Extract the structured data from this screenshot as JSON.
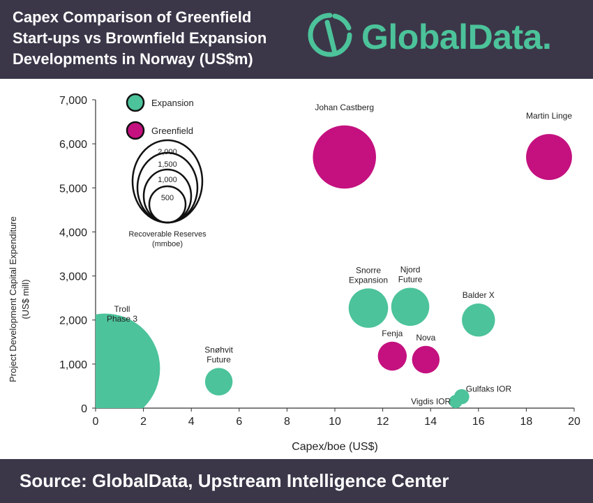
{
  "header": {
    "title_lines": [
      "Capex Comparison of Greenfield",
      "Start-ups vs Brownfield Expansion",
      "Developments in Norway (US$m)"
    ],
    "logo": {
      "wordmark": "GlobalData",
      "dot": ".",
      "color": "#4cc39a"
    }
  },
  "footer": {
    "source": "Source: GlobalData, Upstream Intelligence Center"
  },
  "chart_data": {
    "type": "scatter",
    "title": "Capex Comparison of Greenfield Start-ups vs Brownfield Expansion Developments in Norway (US$m)",
    "xlabel": "Capex/boe (US$)",
    "ylabel": [
      "Project Development Capital Expenditure",
      "(US$ mill)"
    ],
    "xlim": [
      0,
      20
    ],
    "ylim": [
      0,
      7000
    ],
    "x_ticks": [
      "0",
      "2",
      "4",
      "6",
      "8",
      "10",
      "12",
      "14",
      "16",
      "18",
      "20"
    ],
    "y_ticks": [
      "0",
      "1,000",
      "2,000",
      "3,000",
      "4,000",
      "5,000",
      "6,000",
      "7,000"
    ],
    "grid": false,
    "colors": {
      "Expansion": "#4cc39a",
      "Greenfield": "#c4117f"
    },
    "legend": {
      "placement": "top-left",
      "entries": [
        "Expansion",
        "Greenfield"
      ],
      "size_legend_values": [
        "2,000",
        "1,500",
        "1,000",
        "500"
      ],
      "size_title_lines": [
        "Recoverable Reserves",
        "(mmboe)"
      ]
    },
    "points": [
      {
        "label": "Troll Phase 3",
        "label_lines": [
          "Troll",
          "Phase 3"
        ],
        "category": "Expansion",
        "x": 0.4,
        "y": 900,
        "reserves": 1800
      },
      {
        "label": "Snøhvit Future",
        "label_lines": [
          "Snøhvit",
          "Future"
        ],
        "category": "Expansion",
        "x": 5.15,
        "y": 600,
        "reserves": 80
      },
      {
        "label": "Johan Castberg",
        "label_lines": [
          "Johan Castberg"
        ],
        "category": "Greenfield",
        "x": 10.4,
        "y": 5700,
        "reserves": 550
      },
      {
        "label": "Martin Linge",
        "label_lines": [
          "Martin Linge"
        ],
        "category": "Greenfield",
        "x": 18.95,
        "y": 5700,
        "reserves": 270
      },
      {
        "label": "Snorre Expansion",
        "label_lines": [
          "Snorre",
          "Expansion"
        ],
        "category": "Expansion",
        "x": 11.4,
        "y": 2270,
        "reserves": 190
      },
      {
        "label": "Njord Future",
        "label_lines": [
          "Njord",
          "Future"
        ],
        "category": "Expansion",
        "x": 13.15,
        "y": 2300,
        "reserves": 175
      },
      {
        "label": "Balder X",
        "label_lines": [
          "Balder X"
        ],
        "category": "Expansion",
        "x": 16.0,
        "y": 2000,
        "reserves": 125
      },
      {
        "label": "Fenja",
        "label_lines": [
          "Fenja"
        ],
        "category": "Greenfield",
        "x": 12.4,
        "y": 1180,
        "reserves": 90
      },
      {
        "label": "Nova",
        "label_lines": [
          "Nova"
        ],
        "category": "Greenfield",
        "x": 13.8,
        "y": 1100,
        "reserves": 80
      },
      {
        "label": "Vigdis IOR",
        "label_lines": [
          "Vigdis IOR"
        ],
        "category": "Expansion",
        "x": 15.05,
        "y": 150,
        "reserves": 10
      },
      {
        "label": "Gulfaks IOR",
        "label_lines": [
          "Gulfaks IOR"
        ],
        "category": "Expansion",
        "x": 15.3,
        "y": 260,
        "reserves": 15
      }
    ]
  }
}
